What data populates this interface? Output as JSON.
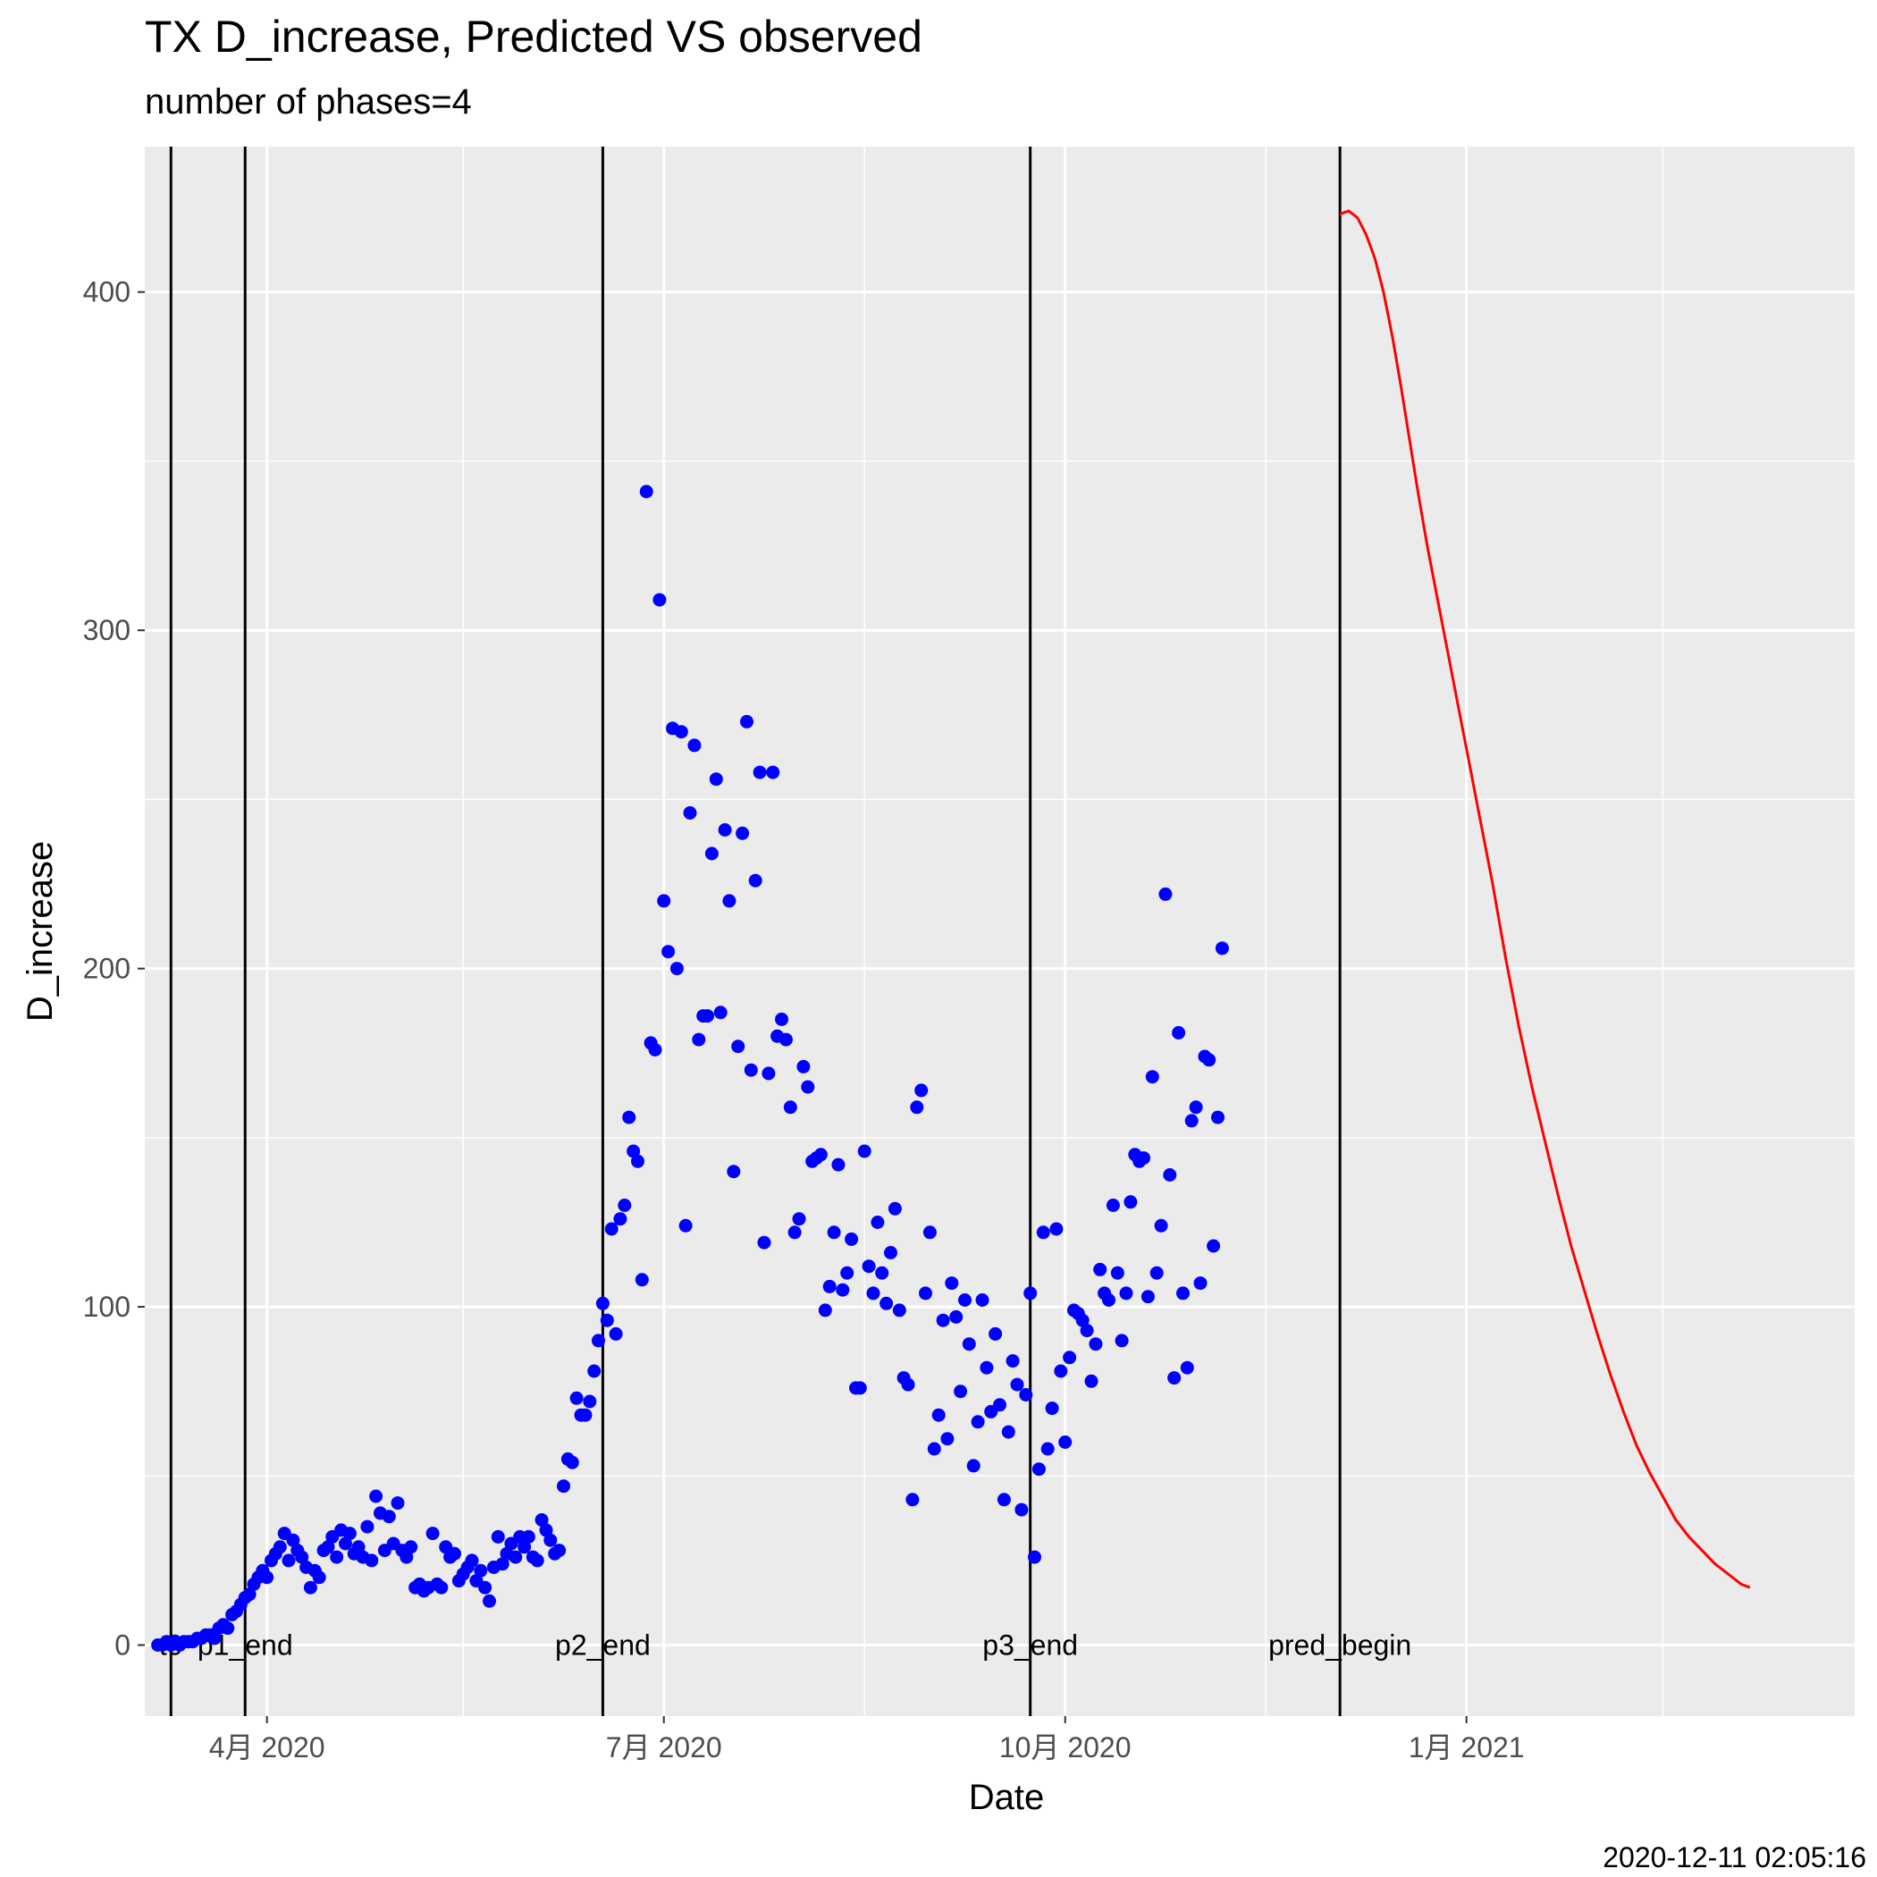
{
  "chart_data": {
    "type": "scatter",
    "title": "TX D_increase, Predicted VS observed",
    "subtitle": "number of phases=4",
    "xlabel": "Date",
    "ylabel": "D_increase",
    "caption": "2020-12-11 02:05:16",
    "xlim": [
      "2020-03-04",
      "2021-03-31"
    ],
    "ylim": [
      -21,
      443
    ],
    "x_ticks": [
      {
        "date": "2020-04-01",
        "label": "4月 2020"
      },
      {
        "date": "2020-07-01",
        "label": "7月 2020"
      },
      {
        "date": "2020-10-01",
        "label": "10月 2020"
      },
      {
        "date": "2021-01-01",
        "label": "1月 2021"
      }
    ],
    "x_minor_ticks": [
      "2020-05-16",
      "2020-08-16",
      "2020-11-16",
      "2021-02-15"
    ],
    "y_ticks": [
      0,
      100,
      200,
      300,
      400
    ],
    "y_minor_ticks": [
      50,
      150,
      250,
      350
    ],
    "grid": true,
    "background": "#ebebeb",
    "vertical_lines": [
      {
        "date": "2020-03-10",
        "label": "t0"
      },
      {
        "date": "2020-03-27",
        "label": "p1_end"
      },
      {
        "date": "2020-06-17",
        "label": "p2_end"
      },
      {
        "date": "2020-09-23",
        "label": "p3_end"
      },
      {
        "date": "2020-12-03",
        "label": "pred_begin"
      }
    ],
    "series": [
      {
        "type": "scatter",
        "color": "#0000ff",
        "start_date": "2020-03-07",
        "values": [
          0,
          0,
          1,
          0,
          1,
          0,
          1,
          1,
          1,
          2,
          2,
          3,
          3,
          2,
          5,
          6,
          5,
          9,
          10,
          12,
          14,
          15,
          18,
          20,
          22,
          20,
          25,
          27,
          29,
          33,
          25,
          31,
          28,
          26,
          23,
          17,
          22,
          20,
          28,
          29,
          32,
          26,
          34,
          30,
          33,
          27,
          29,
          26,
          35,
          25,
          44,
          39,
          28,
          38,
          30,
          42,
          28,
          26,
          29,
          17,
          18,
          16,
          17,
          33,
          18,
          17,
          29,
          26,
          27,
          19,
          21,
          23,
          25,
          19,
          22,
          17,
          13,
          23,
          32,
          24,
          27,
          30,
          26,
          32,
          29,
          32,
          26,
          25,
          37,
          34,
          31,
          27,
          28,
          47,
          55,
          54,
          73,
          68,
          68,
          72,
          81,
          90,
          101,
          96,
          123,
          92,
          126,
          130,
          156,
          146,
          143,
          108,
          341,
          178,
          176,
          309,
          220,
          205,
          271,
          200,
          270,
          124,
          246,
          266,
          179,
          186,
          186,
          234,
          256,
          187,
          241,
          220,
          140,
          177,
          240,
          273,
          170,
          226,
          258,
          119,
          169,
          258,
          180,
          185,
          179,
          159,
          122,
          126,
          171,
          165,
          143,
          144,
          145,
          99,
          106,
          122,
          142,
          105,
          110,
          120,
          76,
          76,
          146,
          112,
          104,
          125,
          110,
          101,
          116,
          129,
          99,
          79,
          77,
          43,
          159,
          164,
          104,
          122,
          58,
          68,
          96,
          61,
          107,
          97,
          75,
          102,
          89,
          53,
          66,
          102,
          82,
          69,
          92,
          71,
          43,
          63,
          84,
          77,
          40,
          74,
          104,
          26,
          52,
          122,
          58,
          70,
          123,
          81,
          60,
          85,
          99,
          98,
          96,
          93,
          78,
          89,
          111,
          104,
          102,
          130,
          110,
          90,
          104,
          131,
          145,
          143,
          144,
          103,
          168,
          110,
          124,
          222,
          139,
          79,
          181,
          104,
          82,
          155,
          159,
          107,
          174,
          173,
          118,
          156,
          206
        ]
      },
      {
        "type": "line",
        "color": "#ff0000",
        "points": [
          [
            "2020-12-03",
            423
          ],
          [
            "2020-12-05",
            424
          ],
          [
            "2020-12-07",
            422
          ],
          [
            "2020-12-09",
            417
          ],
          [
            "2020-12-11",
            410
          ],
          [
            "2020-12-13",
            400
          ],
          [
            "2020-12-15",
            387
          ],
          [
            "2020-12-17",
            372
          ],
          [
            "2020-12-19",
            356
          ],
          [
            "2020-12-21",
            340
          ],
          [
            "2020-12-23",
            325
          ],
          [
            "2020-12-26",
            305
          ],
          [
            "2020-12-29",
            285
          ],
          [
            "2021-01-01",
            265
          ],
          [
            "2021-01-04",
            245
          ],
          [
            "2021-01-07",
            225
          ],
          [
            "2021-01-10",
            203
          ],
          [
            "2021-01-13",
            183
          ],
          [
            "2021-01-16",
            165
          ],
          [
            "2021-01-19",
            149
          ],
          [
            "2021-01-22",
            133
          ],
          [
            "2021-01-25",
            118
          ],
          [
            "2021-01-28",
            105
          ],
          [
            "2021-01-31",
            92
          ],
          [
            "2021-02-03",
            80
          ],
          [
            "2021-02-06",
            69
          ],
          [
            "2021-02-09",
            59
          ],
          [
            "2021-02-12",
            51
          ],
          [
            "2021-02-15",
            44
          ],
          [
            "2021-02-18",
            37
          ],
          [
            "2021-02-21",
            32
          ],
          [
            "2021-02-24",
            28
          ],
          [
            "2021-02-27",
            24
          ],
          [
            "2021-03-02",
            21
          ],
          [
            "2021-03-05",
            18
          ],
          [
            "2021-03-07",
            17
          ]
        ]
      }
    ]
  }
}
